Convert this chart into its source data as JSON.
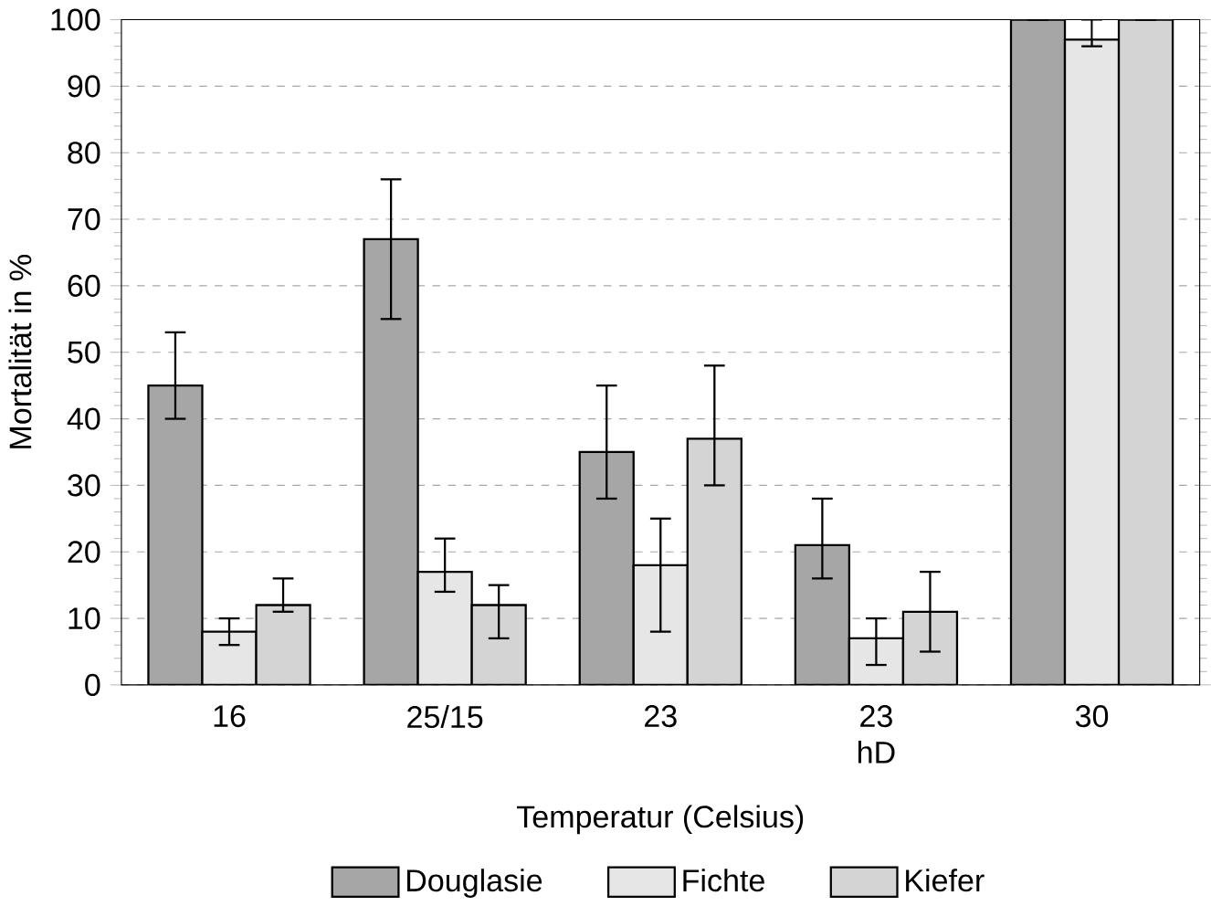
{
  "chart_data": {
    "type": "bar",
    "xlabel": "Temperatur (Celsius)",
    "ylabel": "Mortalität in %",
    "categories": [
      "16",
      "25/15",
      "23",
      "23\nhD",
      "30"
    ],
    "series": [
      {
        "name": "Douglasie",
        "color": "#a6a6a6",
        "values": [
          45,
          67,
          35,
          21,
          100
        ],
        "errors": [
          [
            40,
            53
          ],
          [
            55,
            76
          ],
          [
            28,
            45
          ],
          [
            16,
            28
          ],
          null
        ]
      },
      {
        "name": "Fichte",
        "color": "#e6e6e6",
        "values": [
          8,
          17,
          18,
          7,
          97
        ],
        "errors": [
          [
            6,
            10
          ],
          [
            14,
            22
          ],
          [
            8,
            25
          ],
          [
            3,
            10
          ],
          [
            96,
            100
          ]
        ]
      },
      {
        "name": "Kiefer",
        "color": "#d4d4d4",
        "values": [
          12,
          12,
          37,
          11,
          100
        ],
        "errors": [
          [
            11,
            16
          ],
          [
            7,
            15
          ],
          [
            30,
            48
          ],
          [
            5,
            17
          ],
          null
        ]
      }
    ],
    "ylim": [
      0,
      100
    ],
    "yticks": [
      0,
      10,
      20,
      30,
      40,
      50,
      60,
      70,
      80,
      90,
      100
    ],
    "grid": "y",
    "legend": "bottom"
  }
}
